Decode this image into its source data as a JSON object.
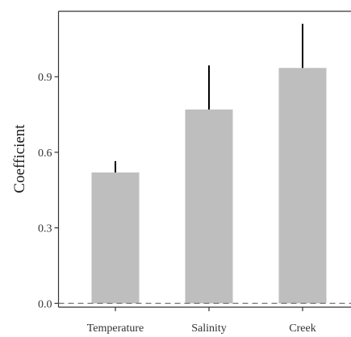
{
  "chart_data": {
    "type": "bar",
    "title": "",
    "xlabel": "",
    "ylabel": "Coefficient",
    "categories": [
      "Temperature",
      "Salinity",
      "Creek"
    ],
    "values": [
      0.52,
      0.77,
      0.935
    ],
    "error_upper": [
      0.565,
      0.945,
      1.11
    ],
    "yticks": [
      0.0,
      0.3,
      0.6,
      0.9
    ],
    "ytick_labels": [
      "0.0",
      "0.3",
      "0.6",
      "0.9"
    ],
    "ylim": [
      -0.015,
      1.16
    ],
    "reference_line": 0.0,
    "grid": false,
    "legend": "none",
    "colors": {
      "bar": "#bebebe",
      "error_bar": "#000000",
      "axis": "#333333",
      "reference_line": "#7f7f7f"
    }
  }
}
